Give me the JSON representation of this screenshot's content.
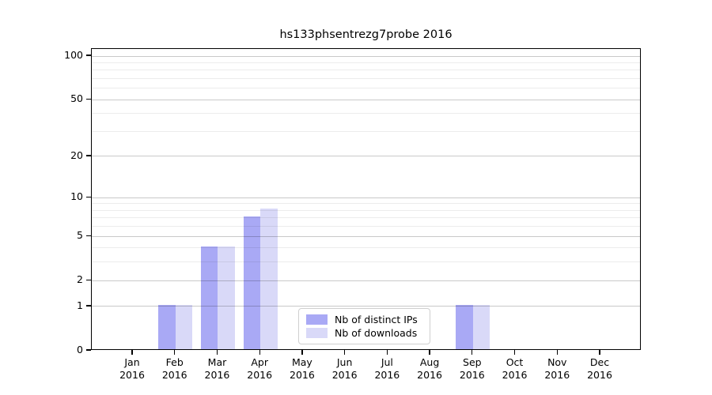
{
  "chart_data": {
    "type": "bar",
    "title": "hs133phsentrezg7probe 2016",
    "year": "2016",
    "categories": [
      "Jan",
      "Feb",
      "Mar",
      "Apr",
      "May",
      "Jun",
      "Jul",
      "Aug",
      "Sep",
      "Oct",
      "Nov",
      "Dec"
    ],
    "series": [
      {
        "name": "Nb of distinct IPs",
        "color": "#a9a9f5",
        "values": [
          0,
          1,
          4,
          7,
          0,
          0,
          0,
          0,
          1,
          0,
          0,
          0
        ]
      },
      {
        "name": "Nb of downloads",
        "color": "#d9d9f8",
        "values": [
          0,
          1,
          4,
          8,
          0,
          0,
          0,
          0,
          1,
          0,
          0,
          0
        ]
      }
    ],
    "yscale": "log10(1+value)",
    "yticks": [
      0,
      1,
      2,
      5,
      10,
      20,
      50,
      100
    ],
    "yticks_minor": [
      3,
      4,
      6,
      7,
      8,
      9,
      30,
      40,
      60,
      70,
      80,
      90
    ],
    "ylim": [
      0,
      112
    ],
    "xlabel": "",
    "ylabel": "",
    "grid": "horizontal",
    "legend_position": "bottom-center",
    "colors": {
      "major_grid": "#c9c9c9",
      "minor_grid": "#ececec",
      "axis": "#000000",
      "background": "#ffffff",
      "text": "#000000"
    }
  }
}
